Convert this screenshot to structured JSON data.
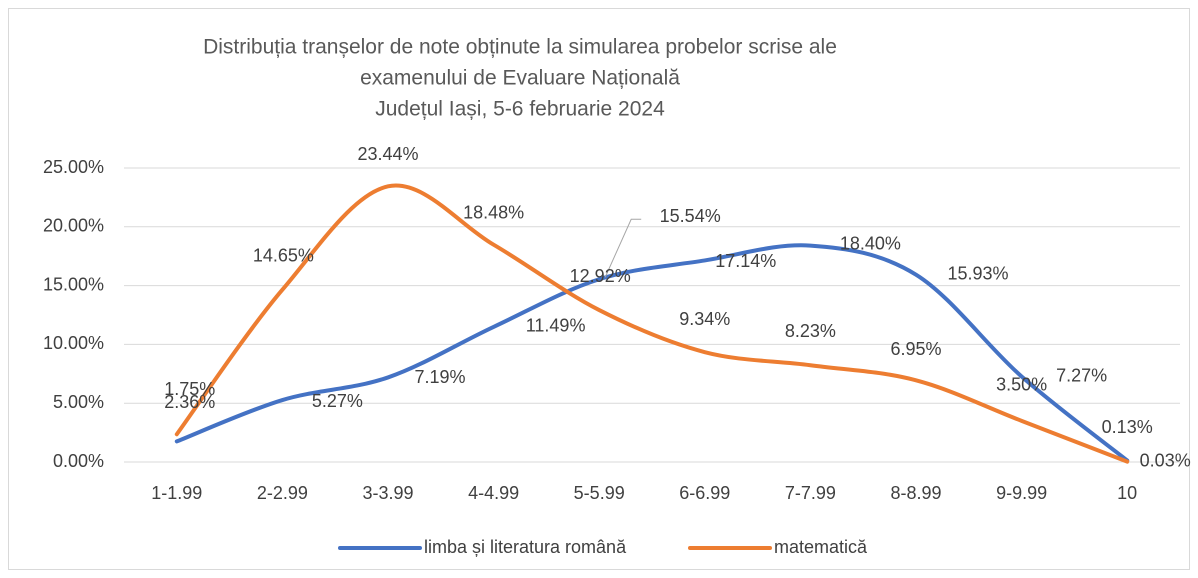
{
  "chart_data": {
    "type": "line",
    "title": [
      "Distribuția tranșelor de note obținute la simularea probelor scrise ale",
      "examenului de Evaluare Națională",
      "Județul Iași, 5-6 februarie 2024"
    ],
    "categories": [
      "1-1.99",
      "2-2.99",
      "3-3.99",
      "4-4.99",
      "5-5.99",
      "6-6.99",
      "7-7.99",
      "8-8.99",
      "9-9.99",
      "10"
    ],
    "series": [
      {
        "name": "limba și literatura română",
        "color": "#4472c4",
        "values": [
          1.75,
          5.27,
          7.19,
          11.49,
          15.54,
          17.14,
          18.4,
          15.93,
          7.27,
          0.13
        ],
        "value_labels": [
          "1.75%",
          "5.27%",
          "7.19%",
          "11.49%",
          "15.54%",
          "17.14%",
          "18.40%",
          "15.93%",
          "7.27%",
          "0.13%"
        ]
      },
      {
        "name": "matematică",
        "color": "#ed7d31",
        "values": [
          2.36,
          14.65,
          23.44,
          18.48,
          12.92,
          9.34,
          8.23,
          6.95,
          3.5,
          0.03
        ],
        "value_labels": [
          "2.36%",
          "14.65%",
          "23.44%",
          "18.48%",
          "12.92%",
          "9.34%",
          "8.23%",
          "6.95%",
          "3.50%",
          "0.03%"
        ]
      }
    ],
    "ylim": [
      0,
      25
    ],
    "yticks": [
      {
        "value": 0,
        "label": "0.00%"
      },
      {
        "value": 5,
        "label": "5.00%"
      },
      {
        "value": 10,
        "label": "10.00%"
      },
      {
        "value": 15,
        "label": "15.00%"
      },
      {
        "value": 20,
        "label": "20.00%"
      },
      {
        "value": 25,
        "label": "25.00%"
      }
    ],
    "grid": true,
    "legend": "bottom"
  }
}
